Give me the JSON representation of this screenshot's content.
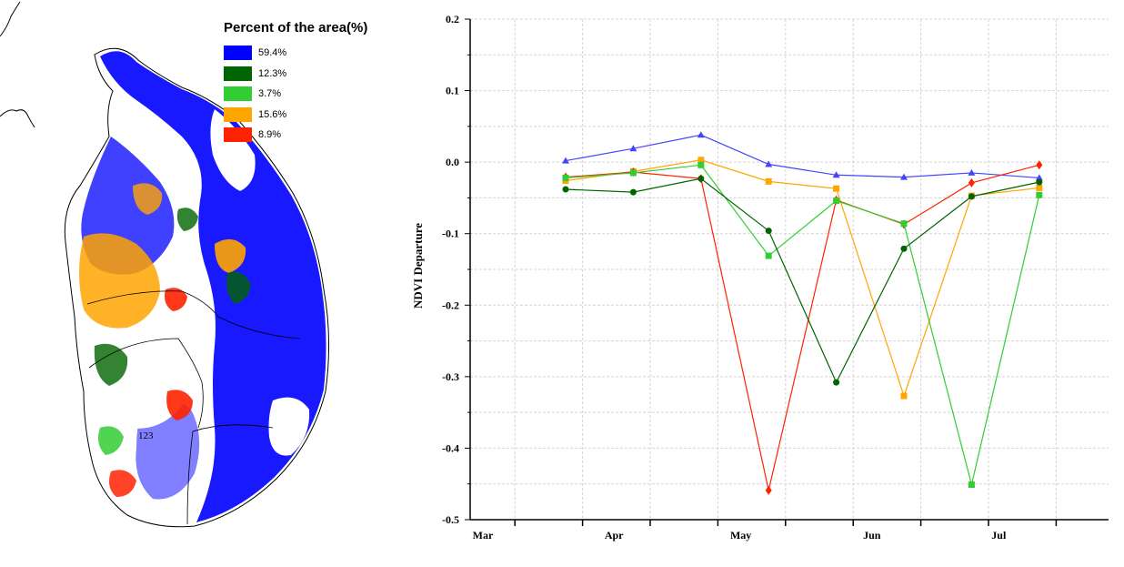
{
  "legend": {
    "title": "Percent of the area(%)",
    "items": [
      {
        "label": "59.4%",
        "color": "#0000ff"
      },
      {
        "label": "12.3%",
        "color": "#006400"
      },
      {
        "label": "3.7%",
        "color": "#32cd32"
      },
      {
        "label": "15.6%",
        "color": "#ffa500"
      },
      {
        "label": "8.9%",
        "color": "#ff2200"
      }
    ]
  },
  "map": {
    "region_label": "123"
  },
  "chart_data": {
    "type": "line",
    "ylabel": "NDVI Departure",
    "xlabel": "",
    "ylim": [
      -0.5,
      0.2
    ],
    "yticks": [
      0.2,
      0.1,
      0.0,
      -0.1,
      -0.2,
      -0.3,
      -0.4,
      -0.5
    ],
    "ytick_labels": [
      "0.2",
      "0.1",
      "0.0",
      "-0.1",
      "-0.2",
      "-0.3",
      "-0.4",
      "-0.5"
    ],
    "x_month_labels": [
      "Mar",
      "Apr",
      "May",
      "Jun",
      "Jul"
    ],
    "x": [
      "Mar-21",
      "Apr-06",
      "Apr-22",
      "May-08",
      "May-24",
      "Jun-09",
      "Jun-25",
      "Jul-11"
    ],
    "grid": true,
    "series": [
      {
        "color": "#4444ff",
        "marker": "triangle",
        "values": [
          0.002,
          0.019,
          0.038,
          -0.003,
          -0.018,
          -0.021,
          -0.015,
          -0.022
        ]
      },
      {
        "color": "#ffa500",
        "marker": "square",
        "values": [
          -0.026,
          -0.013,
          0.003,
          -0.027,
          -0.037,
          -0.327,
          -0.047,
          -0.036
        ]
      },
      {
        "color": "#ff2200",
        "marker": "diamond",
        "values": [
          -0.021,
          -0.014,
          -0.023,
          -0.459,
          -0.053,
          -0.087,
          -0.029,
          -0.004
        ]
      },
      {
        "color": "#32cd32",
        "marker": "square",
        "values": [
          -0.022,
          -0.015,
          -0.004,
          -0.131,
          -0.054,
          -0.086,
          -0.451,
          -0.046
        ]
      },
      {
        "color": "#006400",
        "marker": "circle",
        "values": [
          -0.038,
          -0.042,
          -0.023,
          -0.096,
          -0.308,
          -0.121,
          -0.048,
          -0.028
        ]
      }
    ]
  }
}
